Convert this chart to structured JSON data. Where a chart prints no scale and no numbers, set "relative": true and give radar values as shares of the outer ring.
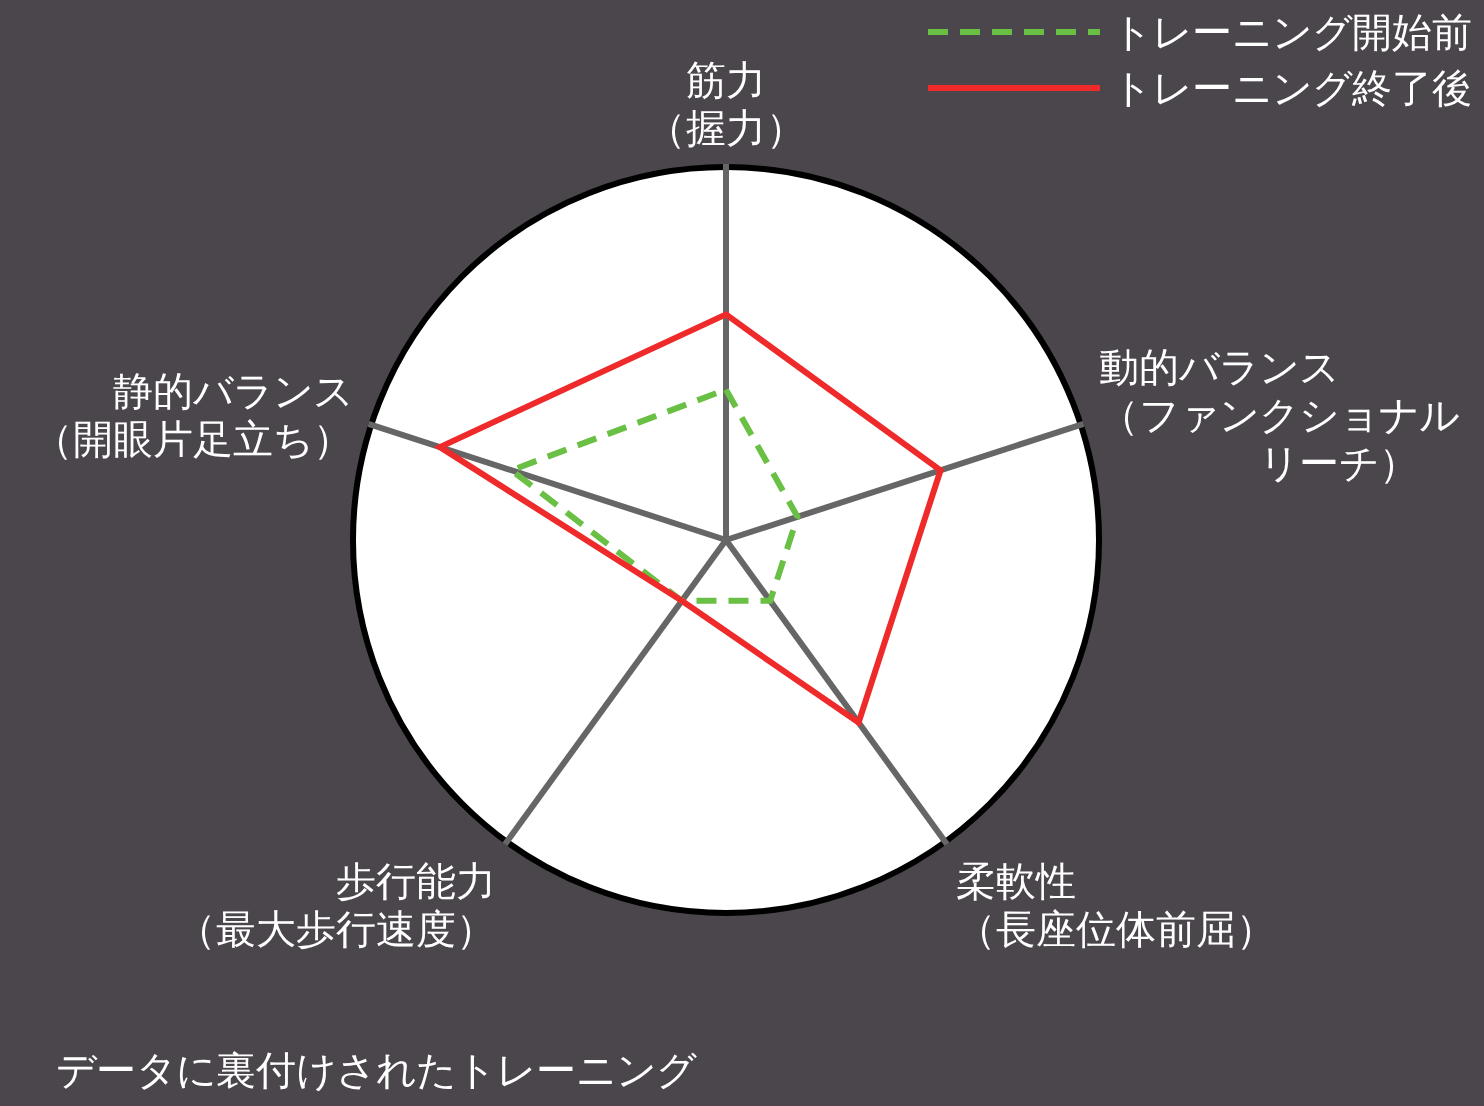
{
  "chart_data": {
    "type": "radar",
    "relative": true,
    "categories": [
      "筋力（握力）",
      "動的バランス（ファンクショナルリーチ）",
      "柔軟性（長座位体前屈）",
      "歩行能力（最大歩行速度）",
      "静的バランス（開眼片足立ち）"
    ],
    "series": [
      {
        "name": "トレーニング開始前",
        "color": "#6abf45",
        "line_style": "dashed",
        "values": [
          0.4,
          0.2,
          0.2,
          0.2,
          0.6
        ]
      },
      {
        "name": "トレーニング終了後",
        "color": "#ee2a2a",
        "line_style": "solid",
        "values": [
          0.6,
          0.6,
          0.6,
          0.2,
          0.8
        ]
      }
    ],
    "legend": "top right",
    "marker": "none",
    "annotations": [
      "データに裏付けされたトレーニング"
    ]
  }
}
